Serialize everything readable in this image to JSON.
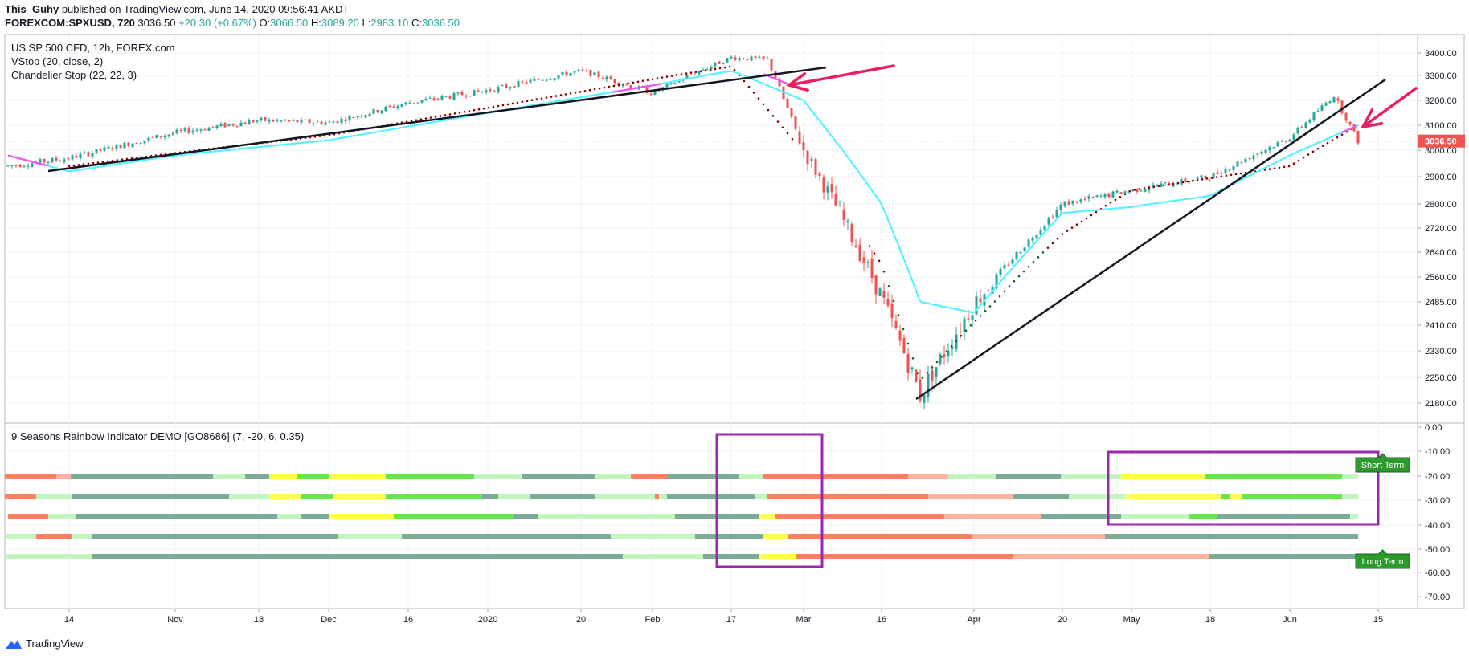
{
  "header": {
    "author": "This_Guhy",
    "published_text": "published on TradingView.com, June 14, 2020 09:56:41 AKDT",
    "symbol": "FOREXCOM:SPXUSD, 720",
    "last": "3036.50",
    "change": "+20.30 (+0.67%)",
    "o_label": "O:",
    "o": "3066.50",
    "h_label": "H:",
    "h": "3089.20",
    "l_label": "L:",
    "l": "2983.10",
    "c_label": "C:",
    "c": "3036.50"
  },
  "legend": {
    "line1": "US SP 500 CFD, 12h, FOREX.com",
    "line2": "VStop (20, close, 2)",
    "line3": "Chandelier Stop (22, 22, 3)",
    "indicator": "9 Seasons Rainbow Indicator DEMO [GO8686] (7, -20, 6, 0.35)"
  },
  "price_axis": {
    "ticks": [
      "3400.00",
      "3300.00",
      "3200.00",
      "3100.00",
      "3000.00",
      "2900.00",
      "2800.00",
      "2720.00",
      "2640.00",
      "2560.00",
      "2485.00",
      "2410.00",
      "2330.00",
      "2250.00",
      "2180.00"
    ],
    "last_price_tag": "3036.50"
  },
  "indicator_axis": {
    "ticks": [
      "0.00",
      "-10.00",
      "-20.00",
      "-30.00",
      "-40.00",
      "-50.00",
      "-60.00",
      "-70.00"
    ]
  },
  "time_axis": {
    "ticks": [
      "14",
      "Nov",
      "18",
      "Dec",
      "16",
      "2020",
      "20",
      "Feb",
      "17",
      "Mar",
      "16",
      "Apr",
      "20",
      "May",
      "18",
      "Jun",
      "15"
    ]
  },
  "labels": {
    "short_term": "Short Term",
    "long_term": "Long Term"
  },
  "footer": {
    "brand": "TradingView"
  },
  "colors": {
    "up": "#26a69a",
    "down": "#ef5350",
    "vstop": "#55f3ff",
    "vstop_down": "#ff4df0",
    "trendline": "#131722",
    "arrow": "#e91e63",
    "box": "#9c27b0",
    "band_green": "#66e84c",
    "band_teal": "#7cab97",
    "band_light": "#c3f5c0",
    "band_yellow": "#ffff4d",
    "band_orange": "#ff8060",
    "band_pink": "#ffb3a0",
    "label_bg": "#2e9a2e"
  },
  "chart_data": {
    "type": "line",
    "title": "US SP 500 CFD, 12h, FOREX.com",
    "ylim": [
      2160,
      3440
    ],
    "series": [
      {
        "name": "US SP 500 CFD",
        "x": [
          "Oct 7",
          "Oct 14",
          "Nov 1",
          "Nov 18",
          "Dec 1",
          "Dec 16",
          "Jan 1 2020",
          "Jan 20",
          "Feb 1",
          "Feb 17",
          "Feb 20",
          "Mar 1",
          "Mar 16",
          "Mar 23",
          "Apr 1",
          "Apr 20",
          "May 1",
          "May 18",
          "Jun 1",
          "Jun 8",
          "Jun 12"
        ],
        "values": [
          2940,
          2970,
          3070,
          3120,
          3110,
          3190,
          3240,
          3320,
          3230,
          3380,
          3370,
          3000,
          2500,
          2200,
          2480,
          2800,
          2850,
          2900,
          3050,
          3220,
          3036.5
        ]
      },
      {
        "name": "VStop (20, close, 2)",
        "x": [
          "Oct 7",
          "Oct 14",
          "Nov 1",
          "Dec 1",
          "Jan 1 2020",
          "Feb 1",
          "Feb 17",
          "Mar 1",
          "Mar 16",
          "Mar 23",
          "Apr 1",
          "Apr 20",
          "May 1",
          "May 18",
          "Jun 1",
          "Jun 12"
        ],
        "values": [
          2980,
          2920,
          2980,
          3040,
          3150,
          3260,
          3320,
          3200,
          2800,
          2485,
          2450,
          2770,
          2790,
          2830,
          2980,
          3100
        ]
      },
      {
        "name": "Chandelier Stop (22, 22, 3)",
        "x": [
          "Oct 14",
          "Dec 1",
          "Jan 1 2020",
          "Feb 17",
          "Mar 1",
          "Mar 16",
          "Mar 23",
          "Apr 1",
          "Apr 20",
          "May 1",
          "Jun 1",
          "Jun 12"
        ],
        "values": [
          2940,
          3060,
          3170,
          3340,
          2990,
          2600,
          2240,
          2420,
          2700,
          2850,
          2940,
          3100
        ]
      }
    ],
    "indicator": {
      "name": "9 Seasons Rainbow Indicator DEMO [GO8686]",
      "ylim": [
        -75,
        0
      ],
      "rows": [
        -20,
        -30,
        -40,
        -50,
        -60
      ],
      "row_labels": {
        "-20": "Short Term",
        "-60": "Long Term"
      }
    }
  }
}
